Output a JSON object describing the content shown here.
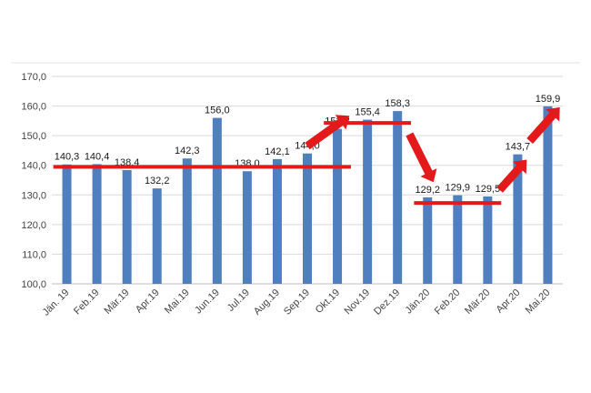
{
  "chart_data": {
    "type": "bar",
    "title": "",
    "xlabel": "",
    "ylabel": "",
    "categories": [
      "Jän. 19",
      "Feb.19",
      "Mär.19",
      "Apr.19",
      "Mai.19",
      "Jun.19",
      "Jul.19",
      "Aug.19",
      "Sep.19",
      "Okt.19",
      "Nov.19",
      "Dez.19",
      "Jän.20",
      "Feb.20",
      "Mär.20",
      "Apr.20",
      "Mai.20"
    ],
    "values": [
      140.3,
      140.4,
      138.4,
      132.2,
      142.3,
      156.0,
      138.0,
      142.1,
      144.0,
      152.3,
      155.4,
      158.3,
      129.2,
      129.9,
      129.5,
      143.7,
      159.9
    ],
    "value_labels": [
      "140,3",
      "140,4",
      "138,4",
      "132,2",
      "142,3",
      "156,0",
      "138,0",
      "142,1",
      "144,0",
      "152,3",
      "155,4",
      "158,3",
      "129,2",
      "129,9",
      "129,5",
      "143,7",
      "159,9"
    ],
    "ylim": [
      100,
      170
    ],
    "y_ticks": [
      100,
      110,
      120,
      130,
      140,
      150,
      160,
      170
    ],
    "y_tick_labels": [
      "100,0",
      "110,0",
      "120,0",
      "130,0",
      "140,0",
      "150,0",
      "160,0",
      "170,0"
    ],
    "grid": true,
    "legend": "none",
    "colors": {
      "bar": "#4f7fbf",
      "annotation": "#e3191b",
      "grid": "#d9d9d9",
      "axis": "#bfbfbf"
    },
    "annotations": [
      {
        "type": "level-line",
        "y": 139.5,
        "from_category": 0,
        "to_category": 9
      },
      {
        "type": "level-line",
        "y": 154.3,
        "from_category": 9,
        "to_category": 11
      },
      {
        "type": "level-line",
        "y": 127.3,
        "from_category": 12,
        "to_category": 14
      },
      {
        "type": "arrow",
        "from": [
          8,
          146.5
        ],
        "to": [
          9.4,
          156.7
        ]
      },
      {
        "type": "arrow",
        "from": [
          11.4,
          150.5
        ],
        "to": [
          12.2,
          134.3
        ]
      },
      {
        "type": "arrow",
        "from": [
          14.4,
          131.7
        ],
        "to": [
          15.3,
          141.9
        ]
      },
      {
        "type": "arrow",
        "from": [
          15.4,
          148.2
        ],
        "to": [
          16.4,
          159.6
        ]
      }
    ]
  }
}
